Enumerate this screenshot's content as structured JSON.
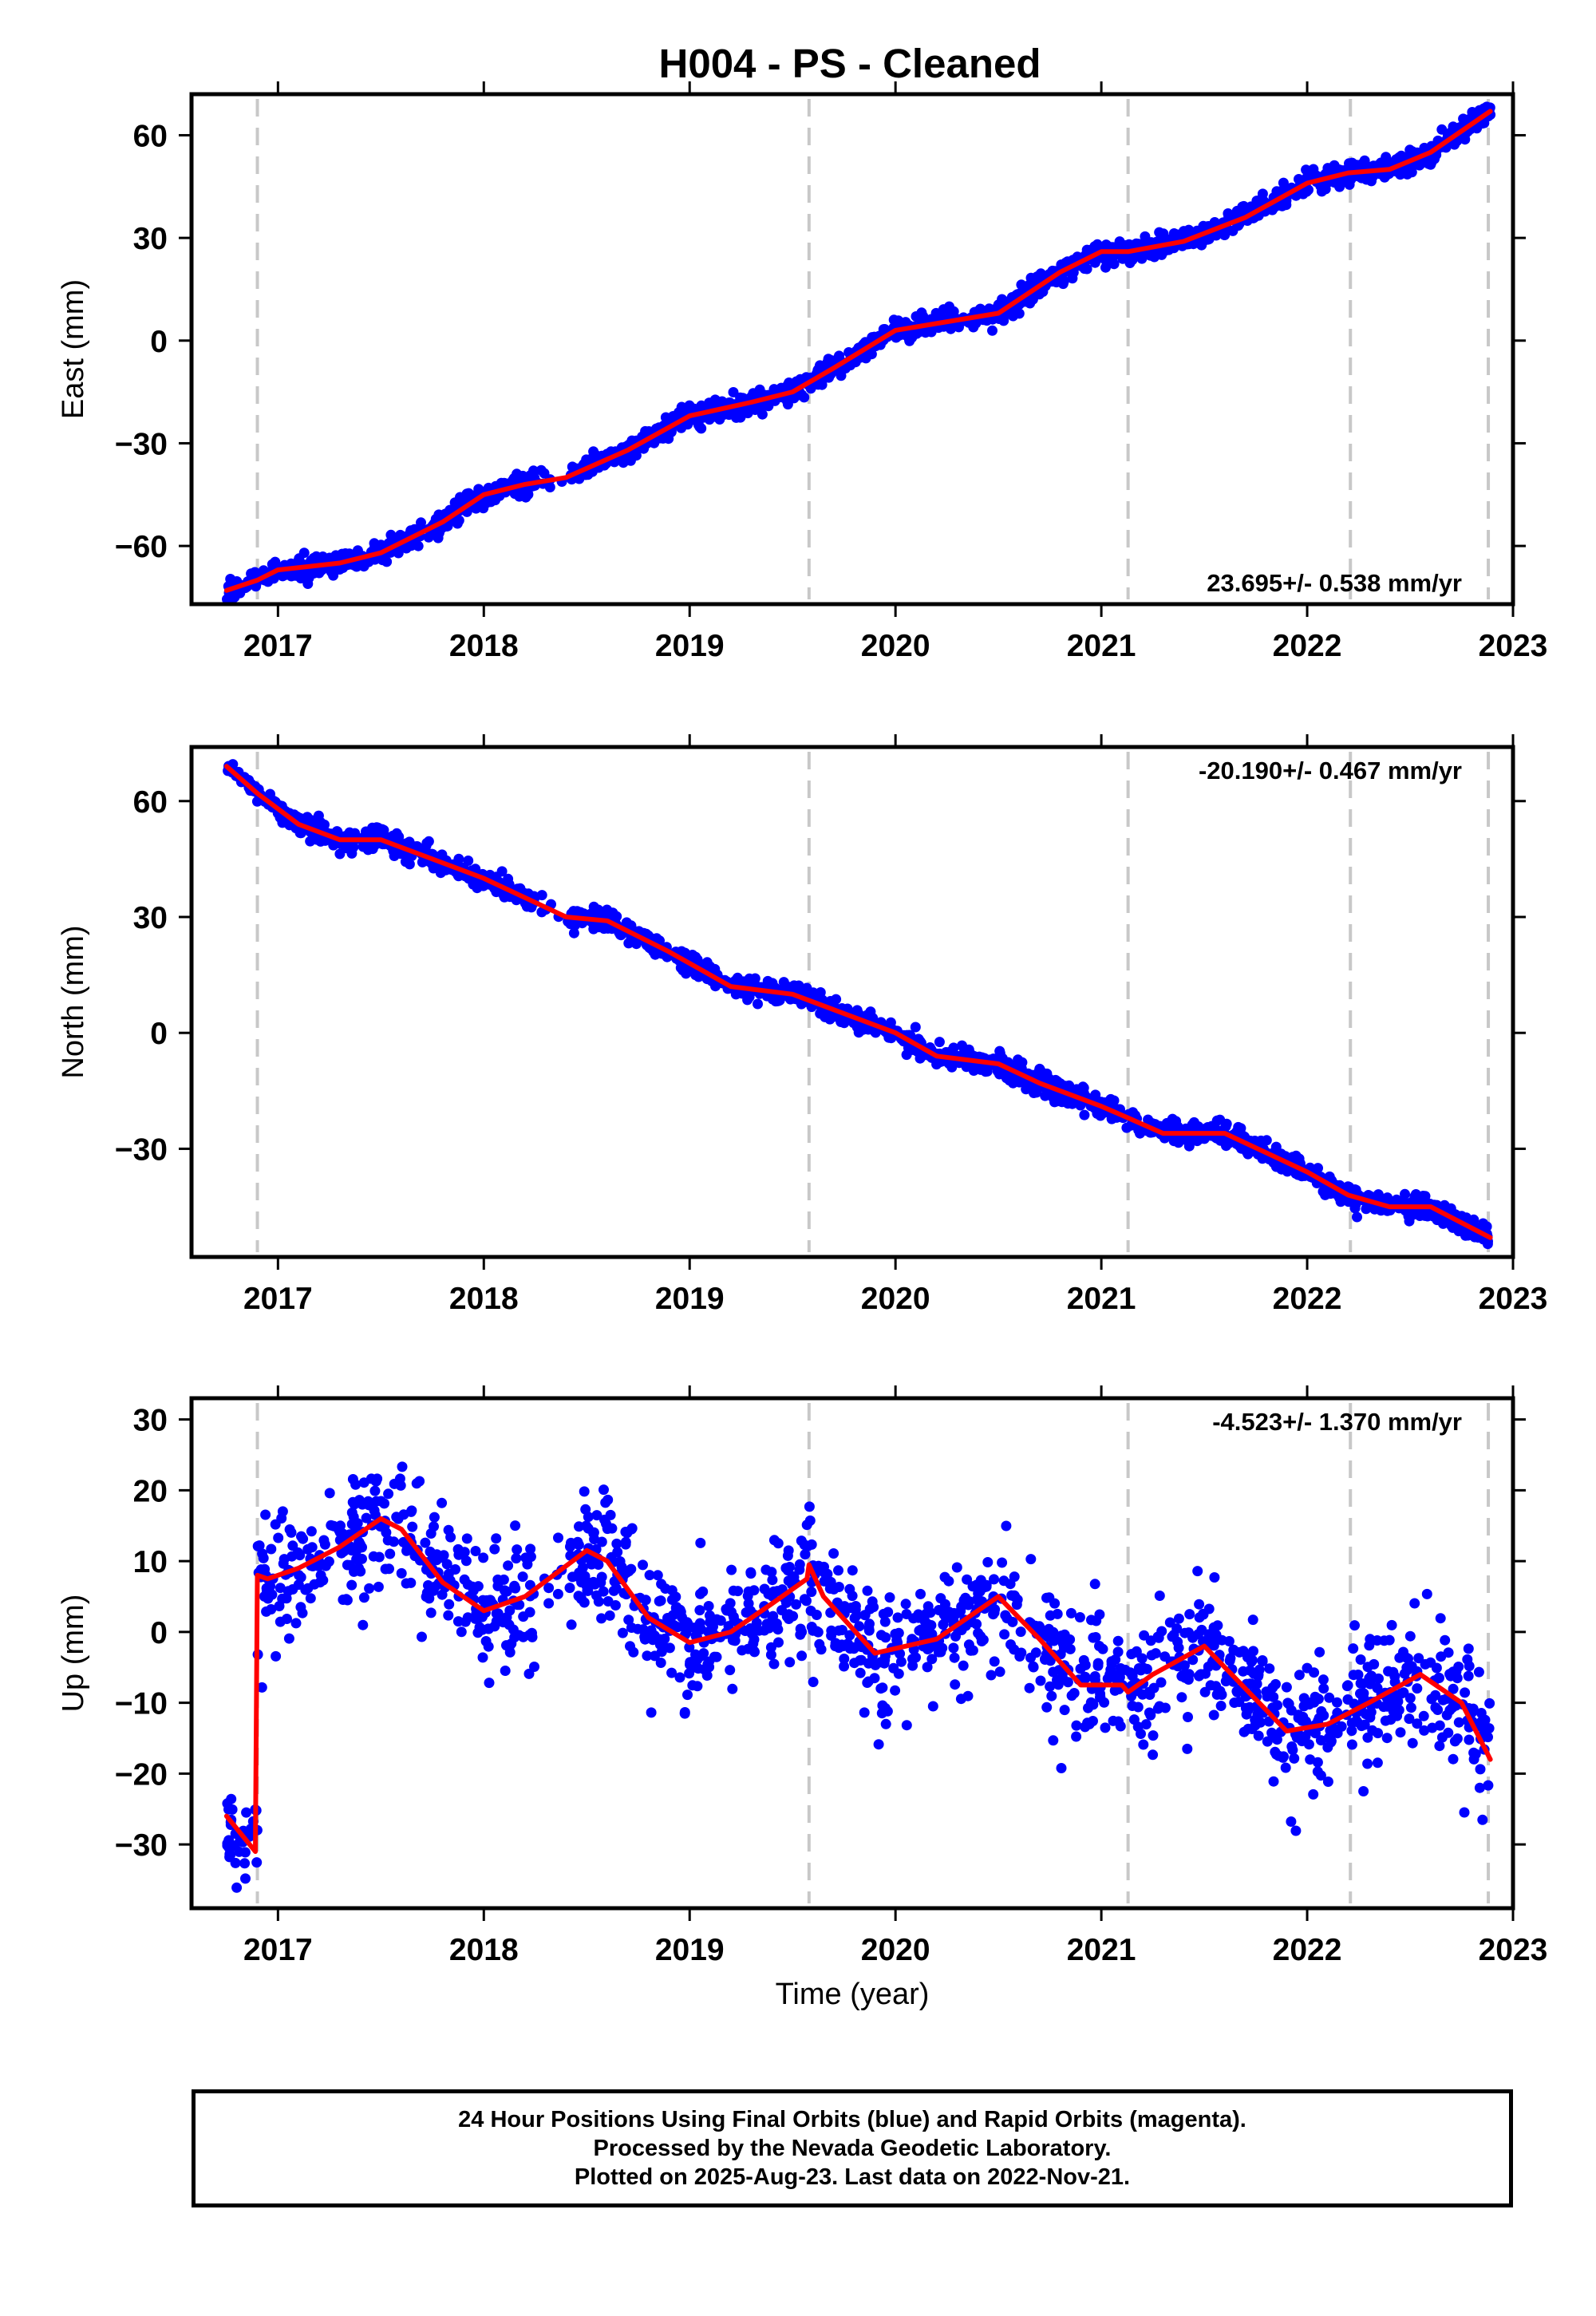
{
  "title": "H004  - PS - Cleaned",
  "colors": {
    "data_points": "#0000ff",
    "model_line": "#ff0000",
    "event_lines": "#c8c8c8",
    "axes": "#000000"
  },
  "chart_data": [
    {
      "type": "scatter",
      "panel": "east",
      "ylabel": "East (mm)",
      "xlabel": "",
      "xlim": [
        2016.58,
        2023.0
      ],
      "ylim": [
        -77,
        72
      ],
      "x_ticks": [
        "2017",
        "2018",
        "2019",
        "2020",
        "2021",
        "2022",
        "2023"
      ],
      "y_ticks": [
        "60",
        "30",
        "0",
        "−30",
        "−60"
      ],
      "rate_label": "23.695+/- 0.538 mm/yr",
      "event_lines": [
        2016.9,
        2019.58,
        2021.13,
        2022.21,
        2022.88
      ],
      "data_start": 2016.75,
      "data_end": 2022.89,
      "noise": 1.6,
      "trend": {
        "name": "fit",
        "x": [
          2016.75,
          2016.9,
          2017.0,
          2017.3,
          2017.5,
          2017.8,
          2018.0,
          2018.2,
          2018.4,
          2018.7,
          2019.0,
          2019.3,
          2019.5,
          2019.7,
          2020.0,
          2020.3,
          2020.5,
          2020.8,
          2021.0,
          2021.13,
          2021.4,
          2021.7,
          2022.0,
          2022.2,
          2022.4,
          2022.6,
          2022.89
        ],
        "y": [
          -73,
          -70,
          -67,
          -65,
          -62,
          -53,
          -45,
          -42,
          -40,
          -32,
          -22,
          -18,
          -15,
          -8,
          3,
          6,
          8,
          20,
          26,
          26,
          29,
          36,
          46,
          49,
          50,
          55,
          67
        ]
      }
    },
    {
      "type": "scatter",
      "panel": "north",
      "ylabel": "North (mm)",
      "xlabel": "",
      "xlim": [
        2016.58,
        2023.0
      ],
      "ylim": [
        -58,
        74
      ],
      "x_ticks": [
        "2017",
        "2018",
        "2019",
        "2020",
        "2021",
        "2022",
        "2023"
      ],
      "y_ticks": [
        "60",
        "30",
        "0",
        "−30"
      ],
      "rate_label": "-20.190+/- 0.467 mm/yr",
      "event_lines": [
        2016.9,
        2019.58,
        2021.13,
        2022.21,
        2022.88
      ],
      "data_start": 2016.75,
      "data_end": 2022.89,
      "noise": 1.4,
      "trend": {
        "name": "fit",
        "x": [
          2016.75,
          2016.9,
          2017.1,
          2017.3,
          2017.5,
          2017.7,
          2018.0,
          2018.2,
          2018.4,
          2018.6,
          2018.9,
          2019.2,
          2019.5,
          2019.7,
          2020.0,
          2020.2,
          2020.5,
          2020.7,
          2021.0,
          2021.13,
          2021.3,
          2021.6,
          2021.8,
          2022.0,
          2022.2,
          2022.4,
          2022.6,
          2022.89
        ],
        "y": [
          69,
          62,
          54,
          50,
          50,
          46,
          40,
          35,
          30,
          29,
          21,
          12,
          10,
          6,
          0,
          -6,
          -8,
          -13,
          -19,
          -22,
          -26,
          -26,
          -31,
          -36,
          -42,
          -45,
          -45,
          -53
        ]
      }
    },
    {
      "type": "scatter",
      "panel": "up",
      "ylabel": "Up (mm)",
      "xlabel": "Time (year)",
      "xlim": [
        2016.58,
        2023.0
      ],
      "ylim": [
        -39,
        33
      ],
      "x_ticks": [
        "2017",
        "2018",
        "2019",
        "2020",
        "2021",
        "2022",
        "2023"
      ],
      "y_ticks": [
        "30",
        "20",
        "10",
        "0",
        "−10",
        "−20",
        "−30"
      ],
      "rate_label": "-4.523+/- 1.370 mm/yr",
      "event_lines": [
        2016.9,
        2019.58,
        2021.13,
        2022.21,
        2022.88
      ],
      "data_start": 2016.75,
      "data_end": 2022.89,
      "noise": 4.5,
      "trend": {
        "name": "fit",
        "x": [
          2016.75,
          2016.89,
          2016.9,
          2016.95,
          2017.1,
          2017.3,
          2017.5,
          2017.6,
          2017.8,
          2018.0,
          2018.2,
          2018.5,
          2018.6,
          2018.8,
          2019.0,
          2019.2,
          2019.4,
          2019.57,
          2019.58,
          2019.65,
          2019.9,
          2020.2,
          2020.5,
          2020.7,
          2020.9,
          2021.1,
          2021.13,
          2021.25,
          2021.5,
          2021.7,
          2021.9,
          2022.1,
          2022.3,
          2022.55,
          2022.75,
          2022.89
        ],
        "y": [
          -26,
          -31,
          8,
          7.5,
          9,
          12,
          16,
          14.5,
          7,
          3,
          5,
          11.5,
          10,
          2,
          -1.5,
          0,
          4,
          7.5,
          9.5,
          5,
          -3,
          -1,
          5,
          -1,
          -7.5,
          -7.5,
          -8.5,
          -6,
          -2,
          -8,
          -14,
          -13,
          -10,
          -6,
          -10,
          -18
        ]
      }
    }
  ],
  "footer": {
    "line1": "24 Hour Positions Using Final Orbits (blue) and Rapid Orbits (magenta).",
    "line2": "Processed by the Nevada Geodetic Laboratory.",
    "line3": "Plotted on 2025-Aug-23. Last data on 2022-Nov-21."
  }
}
